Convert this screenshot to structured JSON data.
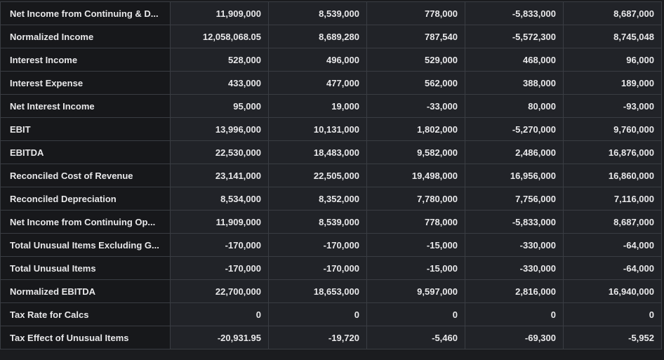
{
  "table": {
    "rows": [
      {
        "label": "Net Income from Continuing & D...",
        "values": [
          "11,909,000",
          "8,539,000",
          "778,000",
          "-5,833,000",
          "8,687,000"
        ]
      },
      {
        "label": "Normalized Income",
        "values": [
          "12,058,068.05",
          "8,689,280",
          "787,540",
          "-5,572,300",
          "8,745,048"
        ]
      },
      {
        "label": "Interest Income",
        "values": [
          "528,000",
          "496,000",
          "529,000",
          "468,000",
          "96,000"
        ]
      },
      {
        "label": "Interest Expense",
        "values": [
          "433,000",
          "477,000",
          "562,000",
          "388,000",
          "189,000"
        ]
      },
      {
        "label": "Net Interest Income",
        "values": [
          "95,000",
          "19,000",
          "-33,000",
          "80,000",
          "-93,000"
        ]
      },
      {
        "label": "EBIT",
        "values": [
          "13,996,000",
          "10,131,000",
          "1,802,000",
          "-5,270,000",
          "9,760,000"
        ]
      },
      {
        "label": "EBITDA",
        "values": [
          "22,530,000",
          "18,483,000",
          "9,582,000",
          "2,486,000",
          "16,876,000"
        ]
      },
      {
        "label": "Reconciled Cost of Revenue",
        "values": [
          "23,141,000",
          "22,505,000",
          "19,498,000",
          "16,956,000",
          "16,860,000"
        ]
      },
      {
        "label": "Reconciled Depreciation",
        "values": [
          "8,534,000",
          "8,352,000",
          "7,780,000",
          "7,756,000",
          "7,116,000"
        ]
      },
      {
        "label": "Net Income from Continuing Op...",
        "values": [
          "11,909,000",
          "8,539,000",
          "778,000",
          "-5,833,000",
          "8,687,000"
        ]
      },
      {
        "label": "Total Unusual Items Excluding G...",
        "values": [
          "-170,000",
          "-170,000",
          "-15,000",
          "-330,000",
          "-64,000"
        ]
      },
      {
        "label": "Total Unusual Items",
        "values": [
          "-170,000",
          "-170,000",
          "-15,000",
          "-330,000",
          "-64,000"
        ]
      },
      {
        "label": "Normalized EBITDA",
        "values": [
          "22,700,000",
          "18,653,000",
          "9,597,000",
          "2,816,000",
          "16,940,000"
        ]
      },
      {
        "label": "Tax Rate for Calcs",
        "values": [
          "0",
          "0",
          "0",
          "0",
          "0"
        ]
      },
      {
        "label": "Tax Effect of Unusual Items",
        "values": [
          "-20,931.95",
          "-19,720",
          "-5,460",
          "-69,300",
          "-5,952"
        ]
      }
    ]
  }
}
